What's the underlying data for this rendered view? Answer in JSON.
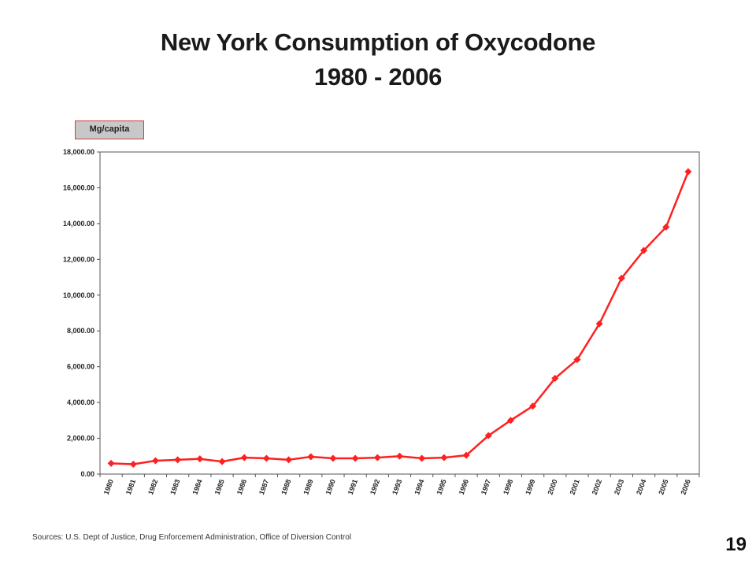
{
  "slide": {
    "title_line1": "New York Consumption of Oxycodone",
    "title_line2": "1980 - 2006",
    "unit_label": "Mg/capita",
    "source": "Sources: U.S. Dept of Justice, Drug Enforcement Administration, Office of Diversion Control",
    "slide_number": "19"
  },
  "chart_data": {
    "type": "line",
    "title": "New York Consumption of Oxycodone 1980 - 2006",
    "ylabel": "Mg/capita",
    "xlabel": "",
    "ylim": [
      0,
      18000
    ],
    "yticks": [
      "0.00",
      "2,000.00",
      "4,000.00",
      "6,000.00",
      "8,000.00",
      "10,000.00",
      "12,000.00",
      "14,000.00",
      "16,000.00",
      "18,000.00"
    ],
    "grid": false,
    "line_color": "#ff2020",
    "categories": [
      "1980",
      "1981",
      "1982",
      "1983",
      "1984",
      "1985",
      "1986",
      "1987",
      "1988",
      "1989",
      "1990",
      "1991",
      "1992",
      "1993",
      "1994",
      "1995",
      "1996",
      "1997",
      "1998",
      "1999",
      "2000",
      "2001",
      "2002",
      "2003",
      "2004",
      "2005",
      "2006"
    ],
    "series": [
      {
        "values": [
          600,
          550,
          750,
          800,
          850,
          700,
          920,
          880,
          800,
          970,
          880,
          880,
          920,
          1000,
          880,
          920,
          1050,
          2150,
          3000,
          3800,
          5350,
          6400,
          8400,
          10950,
          12500,
          13800,
          16900
        ]
      }
    ]
  }
}
